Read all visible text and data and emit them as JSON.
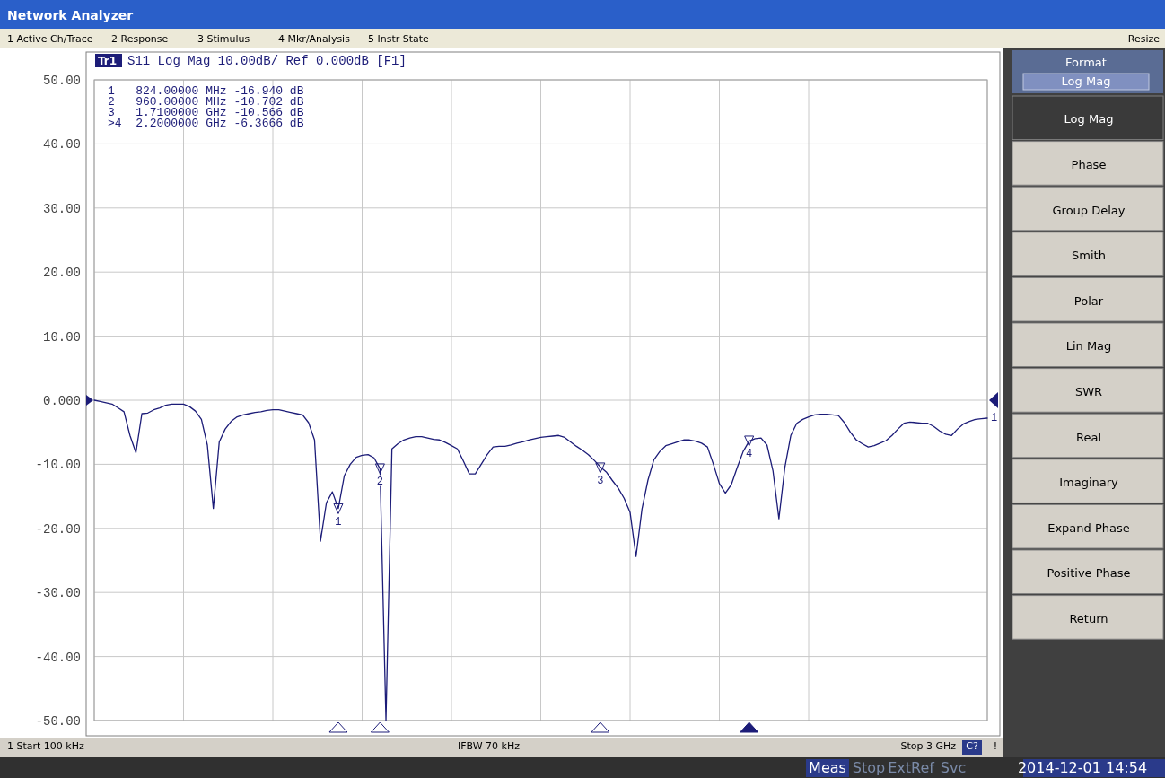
{
  "chart_data": {
    "type": "line",
    "title": "Network Analyzer",
    "subtitle": "S11 Log Mag 10.00dB/ Ref 0.000dB [F1]",
    "categories": [
      null,
      null,
      null,
      null,
      null,
      null,
      null,
      null,
      null,
      null,
      null,
      null,
      null,
      null,
      null,
      null,
      null,
      null,
      null,
      null,
      null,
      null,
      null,
      null,
      null,
      null,
      null,
      null,
      null,
      null,
      null,
      null,
      null,
      null,
      null,
      null,
      null,
      null,
      null,
      null,
      null,
      null,
      null,
      null,
      null,
      null,
      null,
      null,
      null,
      null,
      null,
      null,
      null,
      null,
      null,
      null,
      null,
      null,
      null,
      null,
      null,
      null,
      null,
      null,
      null,
      null,
      null,
      null,
      null,
      null,
      null,
      null,
      null,
      null,
      null,
      null,
      null,
      null,
      null,
      null,
      null,
      null,
      null,
      null,
      null,
      null,
      null,
      null,
      null,
      null,
      null,
      null,
      null,
      null,
      null,
      null,
      null,
      null,
      null,
      null,
      null,
      null,
      null,
      null,
      null,
      null,
      null,
      null,
      null,
      null,
      null,
      null,
      null,
      null,
      null,
      null,
      null,
      null,
      null,
      null,
      null,
      null,
      null,
      null,
      null,
      null,
      null,
      null,
      null,
      null,
      null,
      null,
      null,
      null,
      null,
      null,
      null,
      null,
      null,
      null,
      null,
      null,
      null,
      null,
      null,
      null,
      null,
      null,
      null,
      null,
      null
    ],
    "series": [
      {
        "color": "#1c1c78",
        "values": [
          0,
          -0.2,
          -0.4,
          -0.6,
          -1.2,
          -1.8,
          -5.5,
          -8.2,
          -2.1,
          -2,
          -1.5,
          -1.2,
          -0.8,
          -0.6,
          -0.6,
          -0.6,
          -1,
          -1.7,
          -3,
          -7,
          -16.9,
          -6.5,
          -4.5,
          -3.3,
          -2.6,
          -2.3,
          -2.1,
          -1.9,
          -1.8,
          -1.6,
          -1.5,
          -1.5,
          -1.7,
          -1.9,
          -2.1,
          -2.3,
          -3.5,
          -6.2,
          -22,
          -16,
          -14.3,
          -16.9,
          -11.8,
          -10,
          -8.9,
          -8.6,
          -8.5,
          -9,
          -10.7,
          -50,
          -7.6,
          -6.8,
          -6.2,
          -5.9,
          -5.7,
          -5.7,
          -5.9,
          -6.1,
          -6.2,
          -6.6,
          -7.1,
          -7.6,
          -9.5,
          -11.5,
          -11.5,
          -10,
          -8.5,
          -7.3,
          -7.2,
          -7.2,
          -7,
          -6.7,
          -6.5,
          -6.2,
          -6,
          -5.8,
          -5.7,
          -5.6,
          -5.5,
          -5.8,
          -6.5,
          -7.2,
          -7.8,
          -8.5,
          -9.4,
          -10.4,
          -11.2,
          -12.5,
          -13.7,
          -15.3,
          -17.5,
          -24.4,
          -17,
          -12.5,
          -9.3,
          -8,
          -7.1,
          -6.8,
          -6.5,
          -6.2,
          -6.2,
          -6.4,
          -6.7,
          -7.3,
          -10,
          -13,
          -14.5,
          -13.2,
          -10.5,
          -8,
          -6.4,
          -6,
          -5.9,
          -7,
          -11,
          -18.5,
          -10.5,
          -5.5,
          -3.6,
          -3,
          -2.6,
          -2.3,
          -2.2,
          -2.2,
          -2.3,
          -2.4,
          -3.5,
          -5,
          -6.2,
          -6.8,
          -7.3,
          -7.1,
          -6.7,
          -6.3,
          -5.5,
          -4.5,
          -3.6,
          -3.4,
          -3.5,
          -3.6,
          -3.6,
          -4.1,
          -4.8,
          -5.3,
          -5.5,
          -4.5,
          -3.7,
          -3.3,
          -3,
          -2.9,
          -2.8
        ]
      },
      {
        "type": "scatter",
        "color": "#1c1c78",
        "values": [
          null,
          null,
          null,
          null,
          null,
          null,
          null,
          null,
          null,
          null,
          null,
          null,
          null,
          null,
          null,
          null,
          null,
          null,
          null,
          null,
          null,
          null,
          null,
          null,
          null,
          null,
          null,
          null,
          null,
          null,
          null,
          null,
          null,
          null,
          null,
          null,
          null,
          null,
          null,
          null,
          null,
          -16.94,
          null,
          null,
          null,
          null,
          null,
          null,
          -10.702,
          null,
          null,
          null,
          null,
          null,
          null,
          null,
          null,
          null,
          null,
          null,
          null,
          null,
          null,
          null,
          null,
          null,
          null,
          null,
          null,
          null,
          null,
          null,
          null,
          null,
          null,
          null,
          null,
          null,
          null,
          null,
          null,
          null,
          null,
          null,
          null,
          -10.566,
          null,
          null,
          null,
          null,
          null,
          null,
          null,
          null,
          null,
          null,
          null,
          null,
          null,
          null,
          null,
          null,
          null,
          null,
          null,
          null,
          null,
          null,
          null,
          null,
          -6.3666,
          null,
          null,
          null,
          null,
          null,
          null,
          null,
          null,
          null,
          null,
          null,
          null,
          null,
          null,
          null,
          null,
          null,
          null,
          null,
          null,
          null,
          null,
          null,
          null,
          null,
          null,
          null,
          null,
          null,
          null,
          null,
          null,
          null,
          null,
          null,
          null,
          null,
          null,
          null,
          null
        ]
      }
    ],
    "ylim": [
      -50,
      50
    ],
    "yticks": [
      {
        "value": 50,
        "label": "50.00"
      },
      {
        "value": 40,
        "label": "40.00"
      },
      {
        "value": 30,
        "label": "30.00"
      },
      {
        "value": 20,
        "label": "20.00"
      },
      {
        "value": 10,
        "label": "10.00"
      },
      {
        "value": 0,
        "label": "0.000"
      },
      {
        "value": -10,
        "label": "-10.00"
      },
      {
        "value": -20,
        "label": "-20.00"
      },
      {
        "value": -30,
        "label": "-30.00"
      },
      {
        "value": -40,
        "label": "-40.00"
      },
      {
        "value": -50,
        "label": "-50.00"
      }
    ],
    "grid": true,
    "tick_labels": "y",
    "line_style": "solid",
    "annotations": [
      "Tr1",
      "1   824.00000 MHz -16.940 dB",
      "2   960.00000 MHz -10.702 dB",
      "3   1.7100000 GHz -10.566 dB",
      ">4  2.2000000 GHz -6.3666 dB",
      "1 Active Ch/Trace",
      "2 Response",
      "3 Stimulus",
      "4 Mkr/Analysis",
      "5 Instr State",
      "Resize",
      "Format",
      "Log Mag",
      "Log Mag",
      "Phase",
      "Group Delay",
      "Smith",
      "Polar",
      "Lin Mag",
      "SWR",
      "Real",
      "Imaginary",
      "Expand Phase",
      "Positive Phase",
      "Return",
      "1 Start 100 kHz",
      "IFBW 70 kHz",
      "Stop 3 GHz",
      "C?",
      "!",
      "Meas",
      "Stop",
      "ExtRef",
      "Svc",
      "2014-12-01 14:54",
      "1",
      "1",
      "2",
      "3",
      "4"
    ]
  }
}
